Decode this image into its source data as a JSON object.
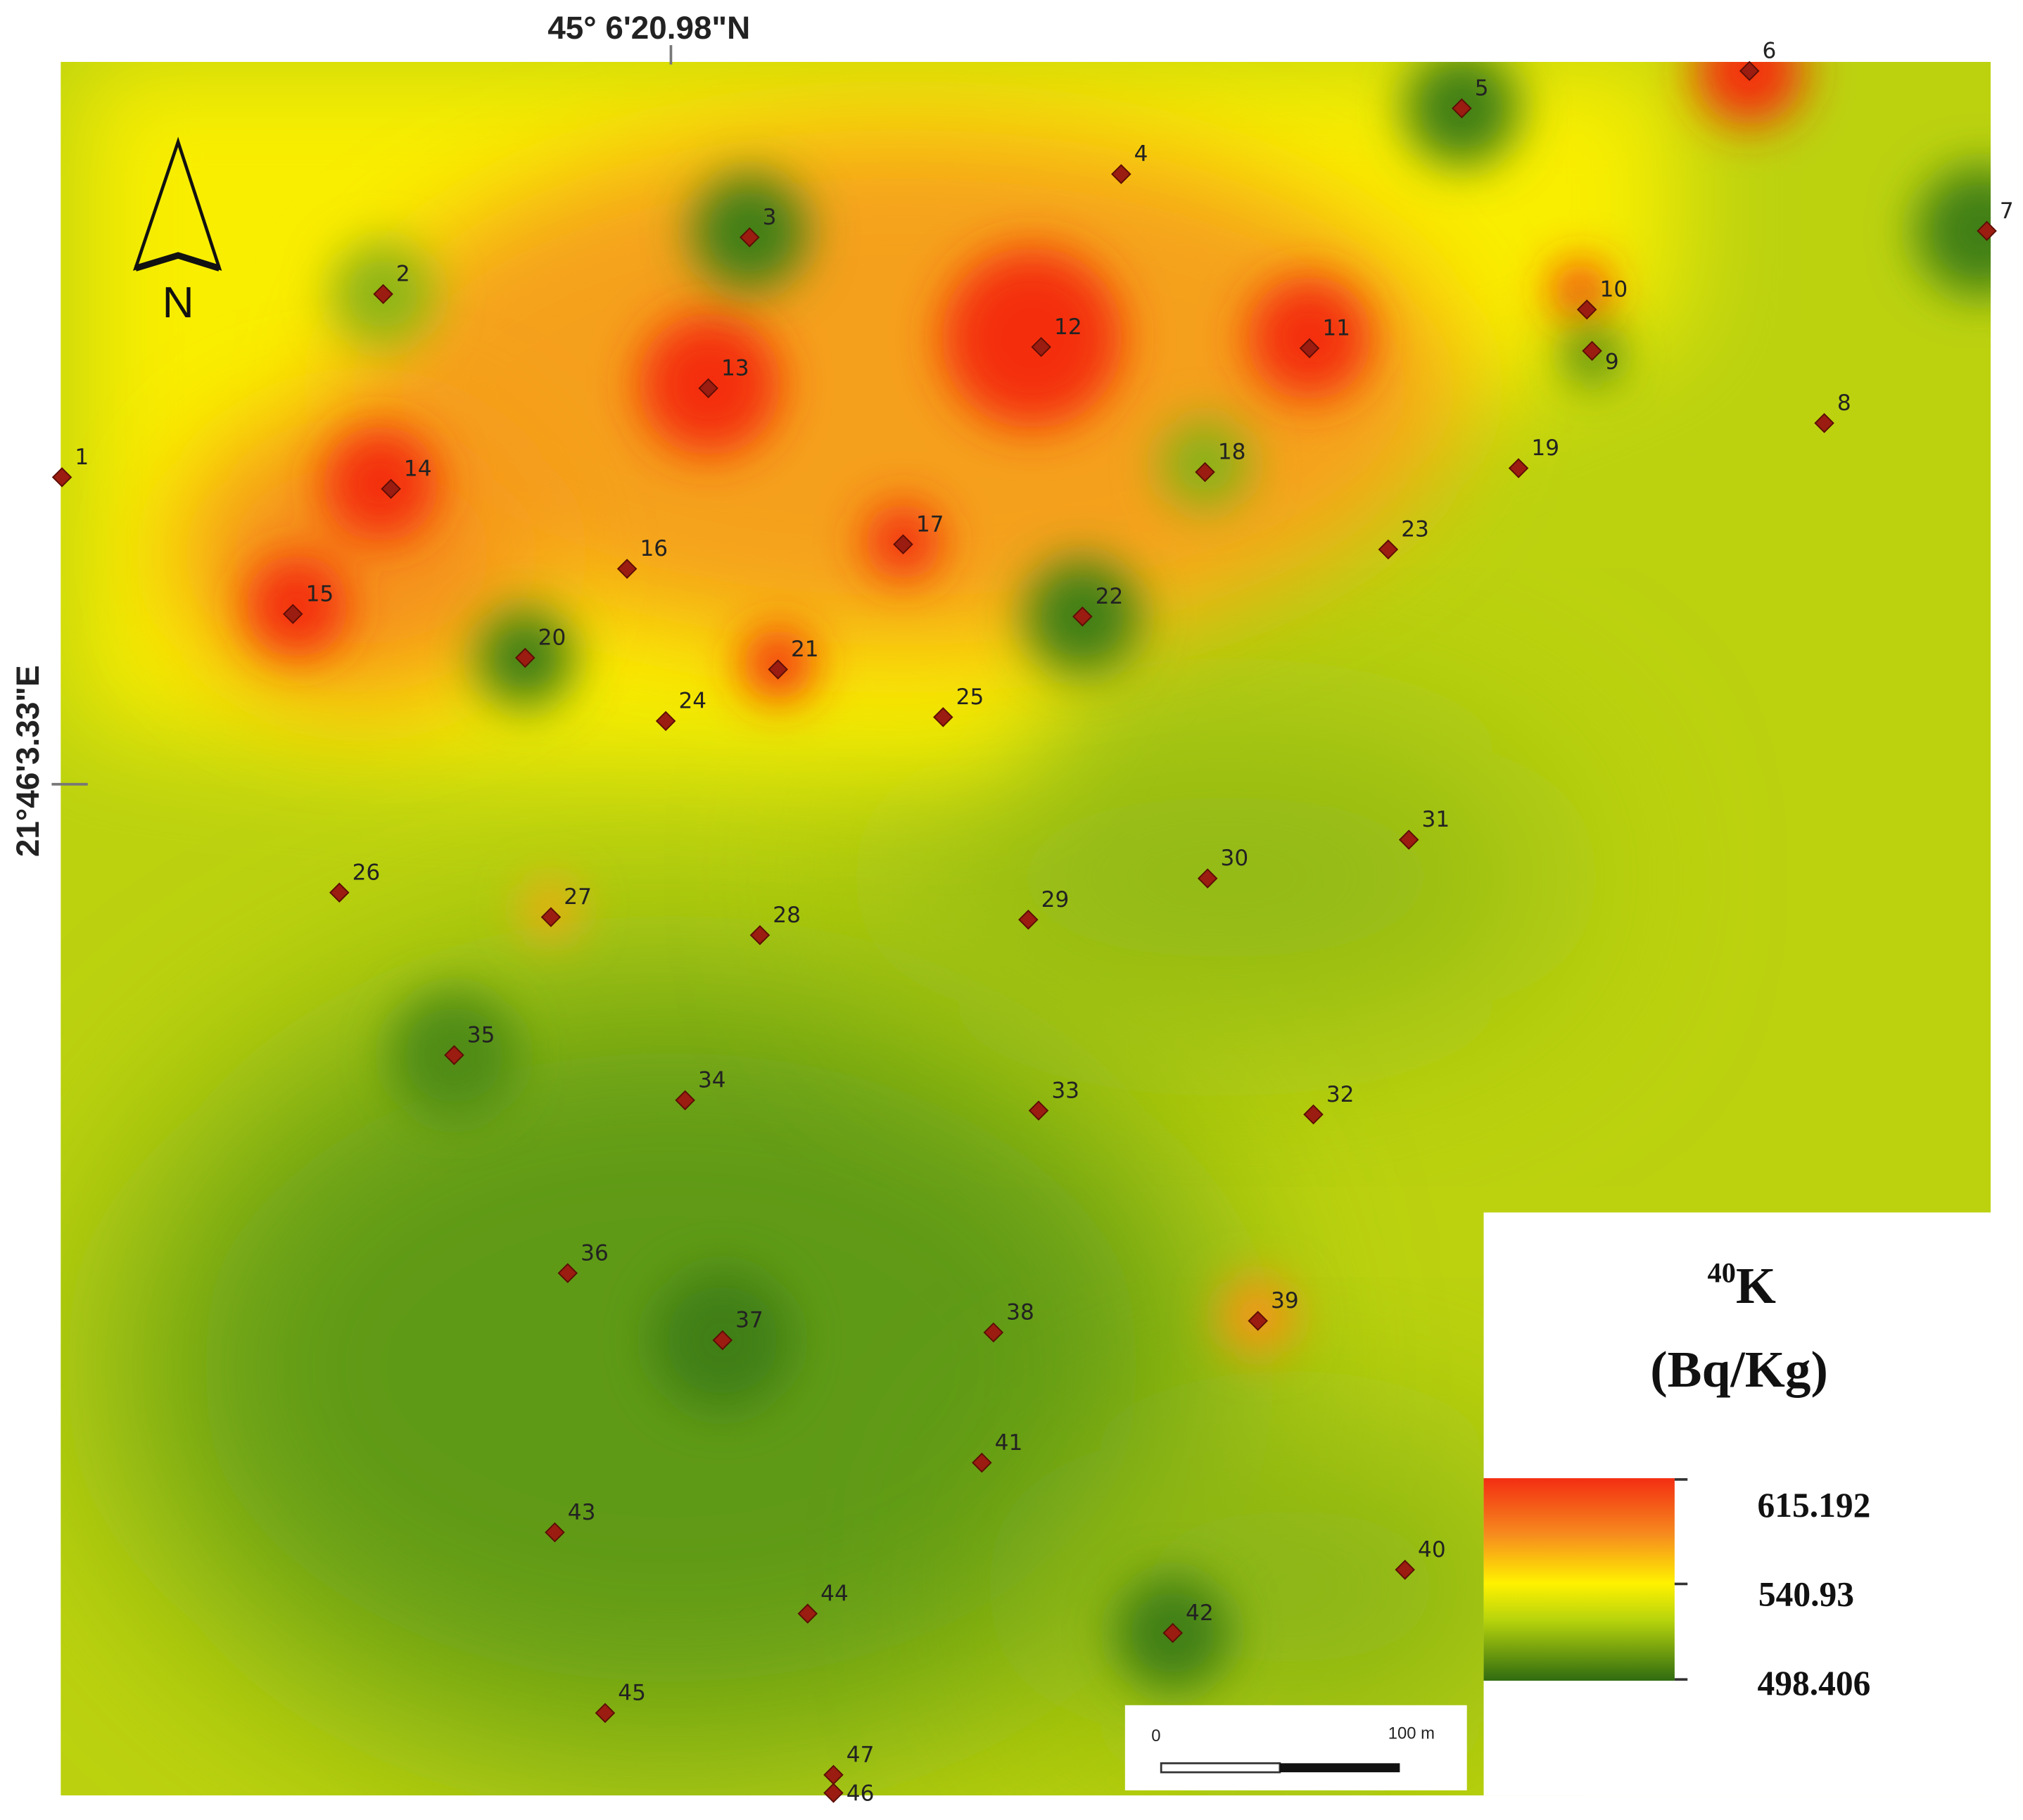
{
  "map": {
    "north_label": "N",
    "latitude_label": "45° 6'20.98\"N",
    "longitude_label": "21°46'3.33\"E",
    "legend": {
      "isotope": "40",
      "element": "K",
      "unit": "(Bq/Kg)",
      "labels": [
        "615.192",
        "540.93",
        "498.406"
      ]
    },
    "scale": {
      "start": "0",
      "end": "100 m"
    },
    "points": [
      "1",
      "2",
      "3",
      "4",
      "5",
      "6",
      "7",
      "8",
      "9",
      "10",
      "11",
      "12",
      "13",
      "14",
      "15",
      "16",
      "17",
      "18",
      "19",
      "20",
      "21",
      "22",
      "23",
      "24",
      "25",
      "26",
      "27",
      "28",
      "29",
      "30",
      "31",
      "32",
      "33",
      "34",
      "35",
      "36",
      "37",
      "38",
      "39",
      "40",
      "41",
      "42",
      "43",
      "44",
      "45",
      "46",
      "47"
    ]
  }
}
